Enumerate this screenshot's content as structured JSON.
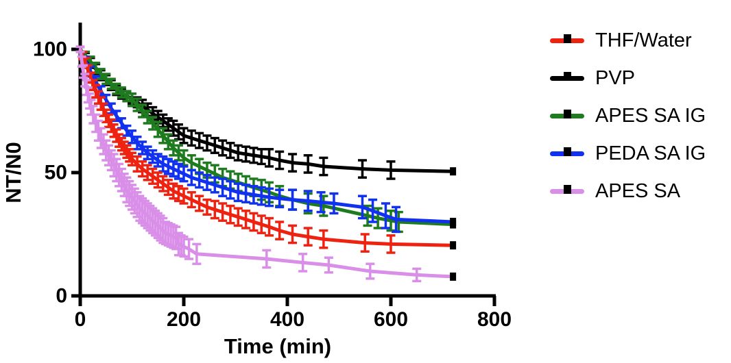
{
  "chart_data": {
    "type": "line",
    "title": "",
    "xlabel": "Time (min)",
    "ylabel": "NT/N0",
    "xlim": [
      0,
      800
    ],
    "ylim": [
      0,
      110
    ],
    "x_ticks": [
      0,
      200,
      400,
      600,
      800
    ],
    "y_ticks": [
      0,
      50,
      100
    ],
    "grid": false,
    "legend_position": "right",
    "error_bars": true,
    "marker": "black-square",
    "draw_order": [
      "PVP",
      "APES SA IG",
      "PEDA SA IG",
      "THF/Water",
      "APES SA"
    ],
    "series": [
      {
        "name": "THF/Water",
        "color": "#ee2211",
        "points": [
          [
            0,
            100,
            1
          ],
          [
            5,
            97.5,
            1.5
          ],
          [
            10,
            94.5,
            2
          ],
          [
            15,
            91.5,
            2
          ],
          [
            20,
            88.5,
            2
          ],
          [
            25,
            85.5,
            2
          ],
          [
            30,
            83,
            2.5
          ],
          [
            35,
            80.5,
            2.5
          ],
          [
            40,
            78,
            2.5
          ],
          [
            45,
            75.5,
            2.5
          ],
          [
            50,
            73,
            2.5
          ],
          [
            55,
            71,
            2.5
          ],
          [
            60,
            69,
            2.5
          ],
          [
            65,
            67,
            2.5
          ],
          [
            70,
            65,
            2.5
          ],
          [
            75,
            63,
            2.5
          ],
          [
            80,
            61.5,
            2.5
          ],
          [
            85,
            60,
            2.5
          ],
          [
            90,
            58.5,
            2.5
          ],
          [
            95,
            57,
            2.5
          ],
          [
            100,
            55.5,
            2.5
          ],
          [
            110,
            53.5,
            3
          ],
          [
            120,
            51.5,
            3
          ],
          [
            130,
            50,
            3
          ],
          [
            140,
            48.5,
            3
          ],
          [
            150,
            47,
            3
          ],
          [
            160,
            45.5,
            3
          ],
          [
            170,
            44,
            3
          ],
          [
            180,
            42.5,
            3
          ],
          [
            190,
            41.5,
            3
          ],
          [
            200,
            40.5,
            3
          ],
          [
            215,
            39,
            3
          ],
          [
            230,
            37.5,
            3
          ],
          [
            245,
            36,
            3
          ],
          [
            260,
            35,
            3.5
          ],
          [
            275,
            34,
            3.5
          ],
          [
            290,
            33,
            3.5
          ],
          [
            305,
            32,
            3.5
          ],
          [
            320,
            31,
            3.5
          ],
          [
            335,
            30,
            3.5
          ],
          [
            350,
            29,
            3.5
          ],
          [
            365,
            28,
            3.5
          ],
          [
            385,
            26.5,
            3.5
          ],
          [
            410,
            25,
            3.5
          ],
          [
            440,
            24,
            3.5
          ],
          [
            470,
            23,
            3.5
          ],
          [
            550,
            21.5,
            3.5
          ],
          [
            600,
            21,
            3.5
          ],
          [
            720,
            20.5,
            0
          ]
        ]
      },
      {
        "name": "PVP",
        "color": "#000000",
        "points": [
          [
            0,
            100,
            1
          ],
          [
            10,
            97,
            1.5
          ],
          [
            20,
            94.5,
            2
          ],
          [
            30,
            92,
            2
          ],
          [
            40,
            89.5,
            2
          ],
          [
            50,
            87.5,
            2
          ],
          [
            60,
            85.5,
            2
          ],
          [
            70,
            83.5,
            2
          ],
          [
            80,
            82,
            2
          ],
          [
            90,
            81,
            2
          ],
          [
            100,
            80,
            2
          ],
          [
            110,
            78.5,
            2
          ],
          [
            120,
            77,
            2.5
          ],
          [
            130,
            75.5,
            2.5
          ],
          [
            140,
            74,
            2.5
          ],
          [
            150,
            72.5,
            2.5
          ],
          [
            160,
            71,
            2.5
          ],
          [
            170,
            69.5,
            2.5
          ],
          [
            180,
            68,
            3
          ],
          [
            190,
            66.5,
            3
          ],
          [
            200,
            65,
            3
          ],
          [
            215,
            64,
            3
          ],
          [
            230,
            63,
            3
          ],
          [
            245,
            62,
            3
          ],
          [
            260,
            61,
            3
          ],
          [
            275,
            60,
            3
          ],
          [
            290,
            59,
            3
          ],
          [
            305,
            58,
            3
          ],
          [
            320,
            57.5,
            3
          ],
          [
            335,
            57,
            3
          ],
          [
            350,
            56.5,
            3
          ],
          [
            365,
            56,
            3.5
          ],
          [
            385,
            55,
            3.5
          ],
          [
            410,
            54,
            3.5
          ],
          [
            440,
            53.5,
            3.5
          ],
          [
            470,
            52.5,
            3.5
          ],
          [
            545,
            51.5,
            3.5
          ],
          [
            600,
            51,
            3.5
          ],
          [
            720,
            50.5,
            0
          ]
        ]
      },
      {
        "name": "APES SA IG",
        "color": "#1e7b1e",
        "points": [
          [
            0,
            100,
            1
          ],
          [
            10,
            97.5,
            1.5
          ],
          [
            20,
            95,
            2
          ],
          [
            30,
            92.5,
            2
          ],
          [
            40,
            90,
            2
          ],
          [
            50,
            88,
            2
          ],
          [
            60,
            86,
            2
          ],
          [
            70,
            84,
            2
          ],
          [
            80,
            82.5,
            2
          ],
          [
            90,
            81,
            2
          ],
          [
            100,
            79.5,
            2.5
          ],
          [
            110,
            77.5,
            2.5
          ],
          [
            120,
            75,
            2.5
          ],
          [
            130,
            72.5,
            2.5
          ],
          [
            140,
            70,
            2.5
          ],
          [
            150,
            67.5,
            3
          ],
          [
            160,
            65,
            3
          ],
          [
            170,
            62.5,
            3
          ],
          [
            180,
            60,
            3
          ],
          [
            190,
            58,
            3
          ],
          [
            200,
            56,
            3
          ],
          [
            215,
            54,
            3
          ],
          [
            230,
            52.5,
            3
          ],
          [
            245,
            51,
            3
          ],
          [
            260,
            49.5,
            3.5
          ],
          [
            275,
            48,
            3.5
          ],
          [
            290,
            47,
            3.5
          ],
          [
            305,
            46,
            3.5
          ],
          [
            320,
            45,
            3.5
          ],
          [
            335,
            44,
            3.5
          ],
          [
            350,
            43,
            4
          ],
          [
            365,
            42,
            4
          ],
          [
            385,
            40.5,
            4
          ],
          [
            410,
            39,
            4
          ],
          [
            440,
            37.5,
            4
          ],
          [
            470,
            36.5,
            4
          ],
          [
            555,
            32.5,
            4
          ],
          [
            575,
            31.5,
            4
          ],
          [
            600,
            30.5,
            4
          ],
          [
            615,
            30,
            4
          ],
          [
            720,
            29,
            0
          ]
        ]
      },
      {
        "name": "PEDA SA IG",
        "color": "#1031f0",
        "points": [
          [
            0,
            100,
            1
          ],
          [
            10,
            95.5,
            1.5
          ],
          [
            20,
            91,
            2
          ],
          [
            30,
            87,
            2
          ],
          [
            40,
            83,
            2
          ],
          [
            50,
            79.5,
            2
          ],
          [
            60,
            76,
            2
          ],
          [
            70,
            73,
            2
          ],
          [
            80,
            70,
            2
          ],
          [
            90,
            67,
            2
          ],
          [
            100,
            64.5,
            2.5
          ],
          [
            110,
            62,
            2.5
          ],
          [
            120,
            60,
            2.5
          ],
          [
            130,
            58,
            2.5
          ],
          [
            140,
            56.5,
            2.5
          ],
          [
            150,
            55,
            2.5
          ],
          [
            160,
            53.5,
            3
          ],
          [
            170,
            52.5,
            3
          ],
          [
            180,
            51.5,
            3
          ],
          [
            190,
            50.5,
            3
          ],
          [
            200,
            49.5,
            3
          ],
          [
            215,
            48,
            3
          ],
          [
            230,
            47,
            3
          ],
          [
            245,
            46,
            3
          ],
          [
            260,
            45,
            3
          ],
          [
            275,
            44,
            3.5
          ],
          [
            290,
            43,
            3.5
          ],
          [
            305,
            42,
            3.5
          ],
          [
            320,
            41.5,
            3.5
          ],
          [
            335,
            41,
            3.5
          ],
          [
            350,
            40.5,
            3.5
          ],
          [
            365,
            40,
            3.5
          ],
          [
            385,
            39.5,
            3.5
          ],
          [
            410,
            39,
            4
          ],
          [
            440,
            38.5,
            4
          ],
          [
            465,
            38,
            4
          ],
          [
            490,
            37.5,
            4
          ],
          [
            545,
            36,
            4.5
          ],
          [
            565,
            34.5,
            4.5
          ],
          [
            590,
            32.5,
            5
          ],
          [
            610,
            31,
            5
          ],
          [
            720,
            30,
            0
          ]
        ]
      },
      {
        "name": "APES SA",
        "color": "#d98ee8",
        "points": [
          [
            0,
            100,
            1
          ],
          [
            3,
            95,
            2
          ],
          [
            6,
            91,
            2.5
          ],
          [
            9,
            87.5,
            2.5
          ],
          [
            12,
            84.5,
            3
          ],
          [
            15,
            81.5,
            3
          ],
          [
            18,
            79,
            3
          ],
          [
            21,
            76.5,
            3
          ],
          [
            25,
            73.5,
            3.5
          ],
          [
            30,
            70,
            3.5
          ],
          [
            35,
            67,
            4
          ],
          [
            40,
            64,
            4
          ],
          [
            45,
            61.5,
            4
          ],
          [
            50,
            59,
            4
          ],
          [
            55,
            57,
            4
          ],
          [
            60,
            55,
            4
          ],
          [
            65,
            53,
            4.5
          ],
          [
            70,
            51,
            4.5
          ],
          [
            75,
            49,
            4.5
          ],
          [
            80,
            47,
            4.5
          ],
          [
            85,
            45,
            4.5
          ],
          [
            90,
            43,
            5
          ],
          [
            95,
            41.5,
            5
          ],
          [
            100,
            40,
            5
          ],
          [
            105,
            38.5,
            5
          ],
          [
            110,
            37,
            5
          ],
          [
            115,
            35.5,
            5
          ],
          [
            120,
            34.5,
            5
          ],
          [
            125,
            33.5,
            5
          ],
          [
            130,
            32.5,
            5
          ],
          [
            135,
            31.5,
            5
          ],
          [
            140,
            30.5,
            5
          ],
          [
            145,
            29.5,
            5
          ],
          [
            150,
            28.5,
            5
          ],
          [
            155,
            27.5,
            5
          ],
          [
            160,
            26.5,
            5
          ],
          [
            165,
            25.5,
            4.5
          ],
          [
            170,
            25,
            4.5
          ],
          [
            175,
            24.5,
            4.5
          ],
          [
            180,
            24,
            4.5
          ],
          [
            185,
            23.5,
            4.5
          ],
          [
            190,
            21,
            4.5
          ],
          [
            195,
            20.5,
            4
          ],
          [
            200,
            20,
            4
          ],
          [
            210,
            19,
            4
          ],
          [
            225,
            17,
            4
          ],
          [
            360,
            15,
            3.5
          ],
          [
            430,
            13.5,
            3.5
          ],
          [
            480,
            12.5,
            3
          ],
          [
            560,
            10,
            3
          ],
          [
            650,
            8.5,
            2.5
          ],
          [
            720,
            7.8,
            0
          ]
        ]
      }
    ]
  }
}
